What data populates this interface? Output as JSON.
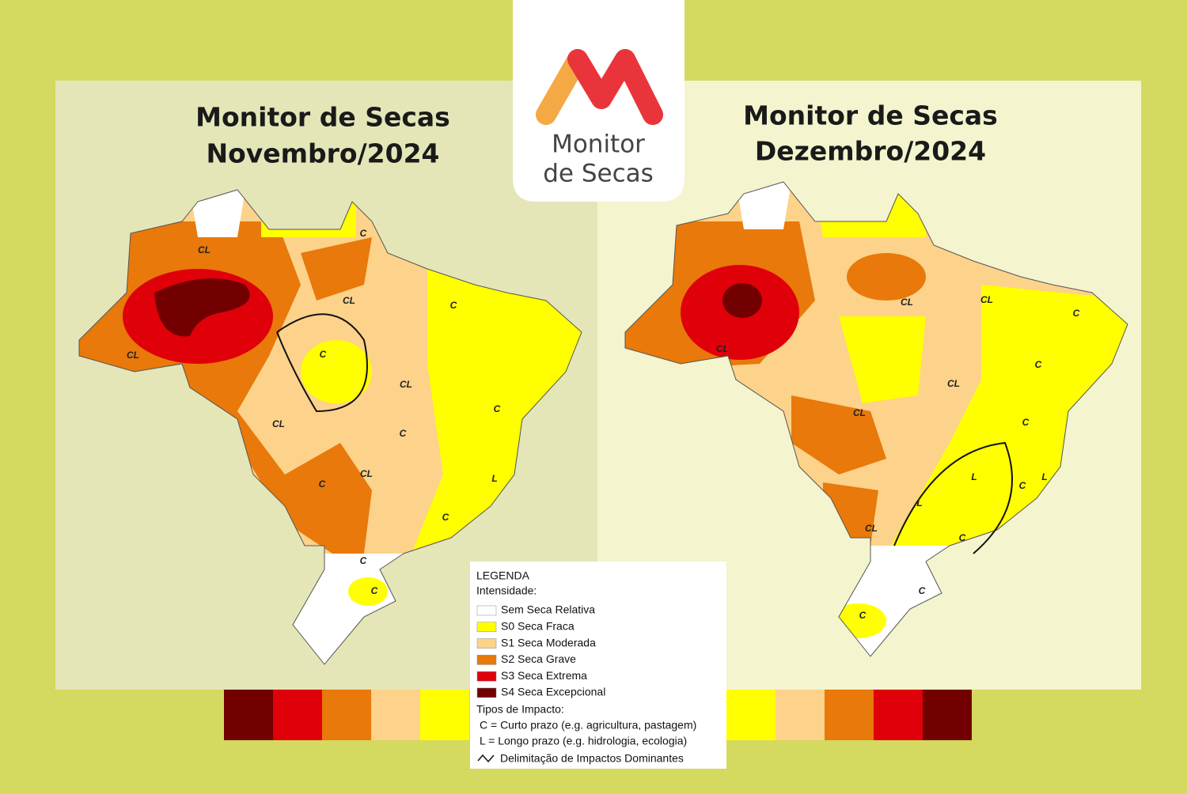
{
  "logo": {
    "line1": "Monitor",
    "line2": "de Secas"
  },
  "maps": [
    {
      "title_line1": "Monitor de Secas",
      "title_line2": "Novembro/2024",
      "labels": [
        "C",
        "CL",
        "CL",
        "C",
        "CL",
        "CL",
        "CL",
        "C",
        "C",
        "CL",
        "C",
        "C",
        "L",
        "C",
        "C",
        "C"
      ]
    },
    {
      "title_line1": "Monitor de Secas",
      "title_line2": "Dezembro/2024",
      "labels": [
        "CL",
        "CL",
        "CL",
        "C",
        "C",
        "CL",
        "CL",
        "C",
        "L",
        "L",
        "C",
        "L",
        "CL",
        "C",
        "C",
        "C"
      ]
    }
  ],
  "legend": {
    "title": "LEGENDA",
    "intensity_heading": "Intensidade:",
    "items": [
      "Sem Seca Relativa",
      "S0 Seca Fraca",
      "S1 Seca Moderada",
      "S2 Seca Grave",
      "S3 Seca Extrema",
      "S4 Seca Excepcional"
    ],
    "impact_heading": "Tipos de Impacto:",
    "impacts": [
      "C = Curto prazo (e.g. agricultura, pastagem)",
      "L = Longo prazo (e.g. hidrologia, ecologia)"
    ],
    "delimitation": "Delimitação de Impactos Dominantes"
  }
}
